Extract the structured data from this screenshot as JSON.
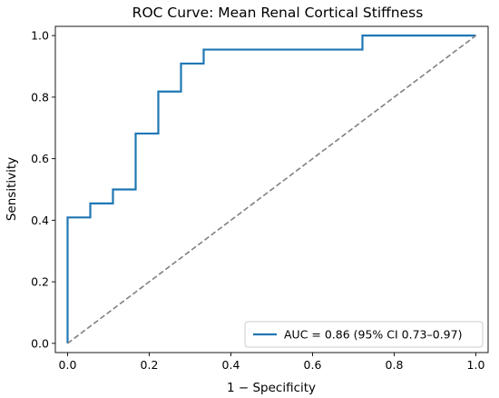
{
  "chart_data": {
    "type": "line",
    "title": "ROC Curve: Mean Renal Cortical Stiffness",
    "xlabel": "1 − Specificity",
    "ylabel": "Sensitivity",
    "xlim": [
      -0.03,
      1.03
    ],
    "ylim": [
      -0.03,
      1.03
    ],
    "xticks": [
      0.0,
      0.2,
      0.4,
      0.6,
      0.8,
      1.0
    ],
    "yticks": [
      0.0,
      0.2,
      0.4,
      0.6,
      0.8,
      1.0
    ],
    "xtick_labels": [
      "0.0",
      "0.2",
      "0.4",
      "0.6",
      "0.8",
      "1.0"
    ],
    "ytick_labels": [
      "0.0",
      "0.2",
      "0.4",
      "0.6",
      "0.8",
      "1.0"
    ],
    "grid": false,
    "legend_position": "lower-right",
    "series": [
      {
        "name": "AUC = 0.86 (95% CI 0.73–0.97)",
        "color": "#1f77b4",
        "style": "solid",
        "x": [
          0.0,
          0.0,
          0.0556,
          0.0556,
          0.1111,
          0.1111,
          0.1667,
          0.1667,
          0.2222,
          0.2222,
          0.2778,
          0.2778,
          0.3333,
          0.3333,
          0.7222,
          0.7222,
          1.0
        ],
        "y": [
          0.0,
          0.409,
          0.409,
          0.4545,
          0.4545,
          0.5,
          0.5,
          0.6818,
          0.6818,
          0.8182,
          0.8182,
          0.9091,
          0.9091,
          0.9545,
          0.9545,
          1.0,
          1.0
        ]
      },
      {
        "color": "#808080",
        "style": "dashed",
        "x": [
          0.0,
          1.0
        ],
        "y": [
          0.0,
          1.0
        ]
      }
    ]
  }
}
